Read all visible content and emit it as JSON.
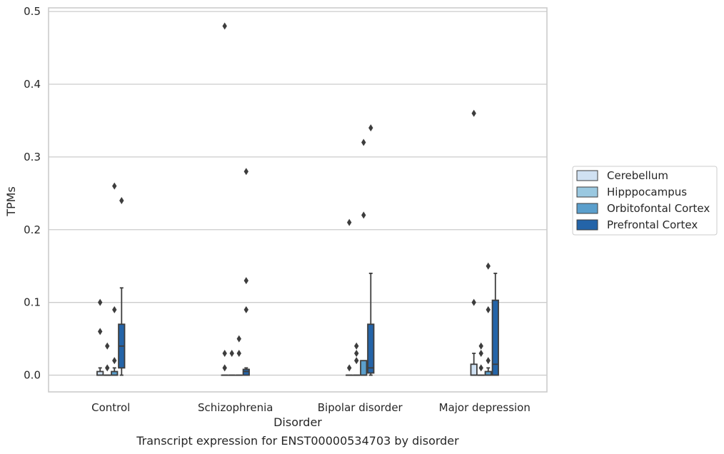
{
  "chart_data": {
    "type": "box",
    "xlabel": "Disorder",
    "ylabel": "TPMs",
    "caption": "Transcript expression for ENST00000534703 by disorder",
    "ylim": [
      -0.023,
      0.505
    ],
    "yticks": [
      "0.0",
      "0.1",
      "0.2",
      "0.3",
      "0.4",
      "0.5"
    ],
    "ytick_values": [
      0,
      0.1,
      0.2,
      0.3,
      0.4,
      0.5
    ],
    "grid": true,
    "legend_position": "right",
    "categories": [
      "Control",
      "Schizophrenia",
      "Bipolar disorder",
      "Major depression"
    ],
    "series": [
      {
        "name": "Cerebellum",
        "color": "#d0e1f2",
        "boxes": [
          {
            "q1": 0,
            "median": 0,
            "q3": 0.005,
            "whisker_low": 0,
            "whisker_high": 0.01,
            "outliers": [
              0.1,
              0.06
            ]
          },
          {
            "q1": 0,
            "median": 0,
            "q3": 0,
            "whisker_low": 0,
            "whisker_high": 0,
            "outliers": [
              0.48,
              0.03,
              0.01
            ]
          },
          {
            "q1": 0,
            "median": 0,
            "q3": 0,
            "whisker_low": 0,
            "whisker_high": 0,
            "outliers": [
              0.21,
              0.01
            ]
          },
          {
            "q1": 0,
            "median": 0,
            "q3": 0.015,
            "whisker_low": 0,
            "whisker_high": 0.03,
            "outliers": [
              0.36,
              0.1
            ]
          }
        ]
      },
      {
        "name": "Hipppocampus",
        "color": "#9ac8e0",
        "boxes": [
          {
            "q1": 0,
            "median": 0,
            "q3": 0,
            "whisker_low": 0,
            "whisker_high": 0,
            "outliers": [
              0.04,
              0.01
            ]
          },
          {
            "q1": 0,
            "median": 0,
            "q3": 0,
            "whisker_low": 0,
            "whisker_high": 0,
            "outliers": [
              0.03
            ]
          },
          {
            "q1": 0,
            "median": 0,
            "q3": 0,
            "whisker_low": 0,
            "whisker_high": 0,
            "outliers": [
              0.04,
              0.03,
              0.02
            ]
          },
          {
            "q1": 0,
            "median": 0,
            "q3": 0,
            "whisker_low": 0,
            "whisker_high": 0,
            "outliers": [
              0.04,
              0.03,
              0.01
            ]
          }
        ]
      },
      {
        "name": "Orbitofontal Cortex",
        "color": "#5b9fcc",
        "boxes": [
          {
            "q1": 0,
            "median": 0,
            "q3": 0.005,
            "whisker_low": 0,
            "whisker_high": 0.01,
            "outliers": [
              0.26,
              0.09,
              0.02
            ]
          },
          {
            "q1": 0,
            "median": 0,
            "q3": 0,
            "whisker_low": 0,
            "whisker_high": 0,
            "outliers": [
              0.05,
              0.03
            ]
          },
          {
            "q1": 0,
            "median": 0,
            "q3": 0.02,
            "whisker_low": 0,
            "whisker_high": 0.02,
            "outliers": [
              0.32,
              0.22
            ]
          },
          {
            "q1": 0,
            "median": 0,
            "q3": 0.005,
            "whisker_low": 0,
            "whisker_high": 0.01,
            "outliers": [
              0.15,
              0.09,
              0.02
            ]
          }
        ]
      },
      {
        "name": "Prefrontal Cortex",
        "color": "#2464a8",
        "boxes": [
          {
            "q1": 0.01,
            "median": 0.04,
            "q3": 0.07,
            "whisker_low": 0,
            "whisker_high": 0.12,
            "outliers": [
              0.24
            ]
          },
          {
            "q1": 0,
            "median": 0.005,
            "q3": 0.008,
            "whisker_low": 0,
            "whisker_high": 0.01,
            "outliers": [
              0.28,
              0.13,
              0.09
            ]
          },
          {
            "q1": 0.003,
            "median": 0.01,
            "q3": 0.07,
            "whisker_low": 0,
            "whisker_high": 0.14,
            "outliers": [
              0.34
            ]
          },
          {
            "q1": 0,
            "median": 0.015,
            "q3": 0.103,
            "whisker_low": 0,
            "whisker_high": 0.14,
            "outliers": []
          }
        ]
      }
    ]
  }
}
